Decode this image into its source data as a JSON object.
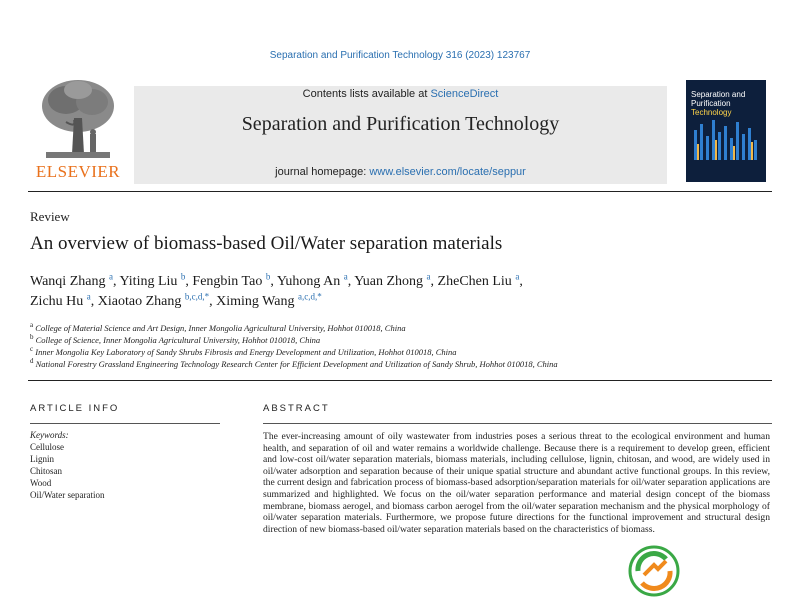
{
  "citation": "Separation and Purification Technology 316 (2023) 123767",
  "header": {
    "publisher": "ELSEVIER",
    "contents_prefix": "Contents lists available at ",
    "contents_link": "ScienceDirect",
    "journal_title": "Separation and Purification Technology",
    "homepage_prefix": "journal homepage: ",
    "homepage_link": "www.elsevier.com/locate/seppur",
    "cover": {
      "line1": "Separation and",
      "line2": "Purification",
      "line3": "Technology"
    }
  },
  "article_type": "Review",
  "title": "An overview of biomass-based Oil/Water separation materials",
  "authors_line1": [
    {
      "name": "Wanqi Zhang",
      "sup": "a",
      "sep": ","
    },
    {
      "name": "Yiting Liu",
      "sup": "b",
      "sep": ","
    },
    {
      "name": "Fengbin Tao",
      "sup": "b",
      "sep": ","
    },
    {
      "name": "Yuhong An",
      "sup": "a",
      "sep": ","
    },
    {
      "name": "Yuan Zhong",
      "sup": "a",
      "sep": ","
    },
    {
      "name": "ZheChen Liu",
      "sup": "a",
      "sep": ","
    }
  ],
  "authors_line2": [
    {
      "name": "Zichu Hu",
      "sup": "a",
      "sep": ","
    },
    {
      "name": "Xiaotao Zhang",
      "sup": "b,c,d,*",
      "sep": ","
    },
    {
      "name": "Ximing Wang",
      "sup": "a,c,d,*",
      "sep": ""
    }
  ],
  "affiliations": [
    {
      "sup": "a",
      "text": "College of Material Science and Art Design, Inner Mongolia Agricultural University, Hohhot 010018, China"
    },
    {
      "sup": "b",
      "text": "College of Science, Inner Mongolia Agricultural University, Hohhot 010018, China"
    },
    {
      "sup": "c",
      "text": "Inner Mongolia Key Laboratory of Sandy Shrubs Fibrosis and Energy Development and Utilization, Hohhot 010018, China"
    },
    {
      "sup": "d",
      "text": "National Forestry Grassland Engineering Technology Research Center for Efficient Development and Utilization of Sandy Shrub, Hohhot 010018, China"
    }
  ],
  "article_info": {
    "heading": "ARTICLE INFO",
    "keywords_label": "Keywords:",
    "keywords": [
      "Cellulose",
      "Lignin",
      "Chitosan",
      "Wood",
      "Oil/Water separation"
    ]
  },
  "abstract": {
    "heading": "ABSTRACT",
    "text": "The ever-increasing amount of oily wastewater from industries poses a serious threat to the ecological environment and human health, and separation of oil and water remains a worldwide challenge. Because there is a requirement to develop green, efficient and low-cost oil/water separation materials, biomass materials, including cellulose, lignin, chitosan, and wood, are widely used in oil/water adsorption and separation because of their unique spatial structure and abundant active functional groups. In this review, the current design and fabrication process of biomass-based adsorption/separation materials for oil/water separation applications are summarized and highlighted. We focus on the oil/water separation performance and material design concept of the biomass membrane, biomass aerogel, and biomass carbon aerogel from the oil/water separation mechanism and the physical morphology of oil/water separation materials. Furthermore, we propose future directions for the functional improvement and structural design direction of new biomass-based oil/water separation materials based on the characteristics of biomass."
  },
  "icons": {
    "badge": "recycle-badge-icon",
    "tree": "elsevier-tree-logo"
  },
  "colors": {
    "link": "#2a6fb0",
    "publisher": "#e9711c",
    "banner": "#eaeaea",
    "cover": "#0d1f3c"
  }
}
